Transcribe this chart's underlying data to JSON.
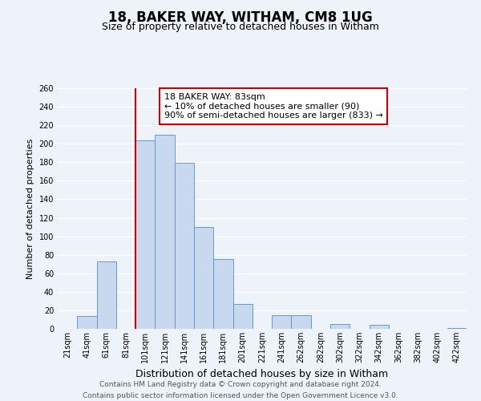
{
  "title": "18, BAKER WAY, WITHAM, CM8 1UG",
  "subtitle": "Size of property relative to detached houses in Witham",
  "xlabel": "Distribution of detached houses by size in Witham",
  "ylabel": "Number of detached properties",
  "categories": [
    "21sqm",
    "41sqm",
    "61sqm",
    "81sqm",
    "101sqm",
    "121sqm",
    "141sqm",
    "161sqm",
    "181sqm",
    "201sqm",
    "221sqm",
    "241sqm",
    "262sqm",
    "282sqm",
    "302sqm",
    "322sqm",
    "342sqm",
    "362sqm",
    "382sqm",
    "402sqm",
    "422sqm"
  ],
  "values": [
    0,
    14,
    73,
    0,
    204,
    210,
    179,
    110,
    75,
    27,
    0,
    15,
    15,
    0,
    5,
    0,
    4,
    0,
    0,
    0,
    1
  ],
  "bar_color": "#c8d8ef",
  "bar_edge_color": "#6699cc",
  "red_line_color": "#cc0000",
  "annotation_title": "18 BAKER WAY: 83sqm",
  "annotation_line1": "← 10% of detached houses are smaller (90)",
  "annotation_line2": "90% of semi-detached houses are larger (833) →",
  "annotation_box_color": "#ffffff",
  "annotation_box_edge": "#cc0000",
  "ylim": [
    0,
    260
  ],
  "yticks": [
    0,
    20,
    40,
    60,
    80,
    100,
    120,
    140,
    160,
    180,
    200,
    220,
    240,
    260
  ],
  "footer1": "Contains HM Land Registry data © Crown copyright and database right 2024.",
  "footer2": "Contains public sector information licensed under the Open Government Licence v3.0.",
  "background_color": "#eef2f9",
  "grid_color": "#ffffff",
  "title_fontsize": 12,
  "subtitle_fontsize": 9,
  "ylabel_fontsize": 8,
  "xlabel_fontsize": 9,
  "tick_fontsize": 7,
  "footer_fontsize": 6.5
}
